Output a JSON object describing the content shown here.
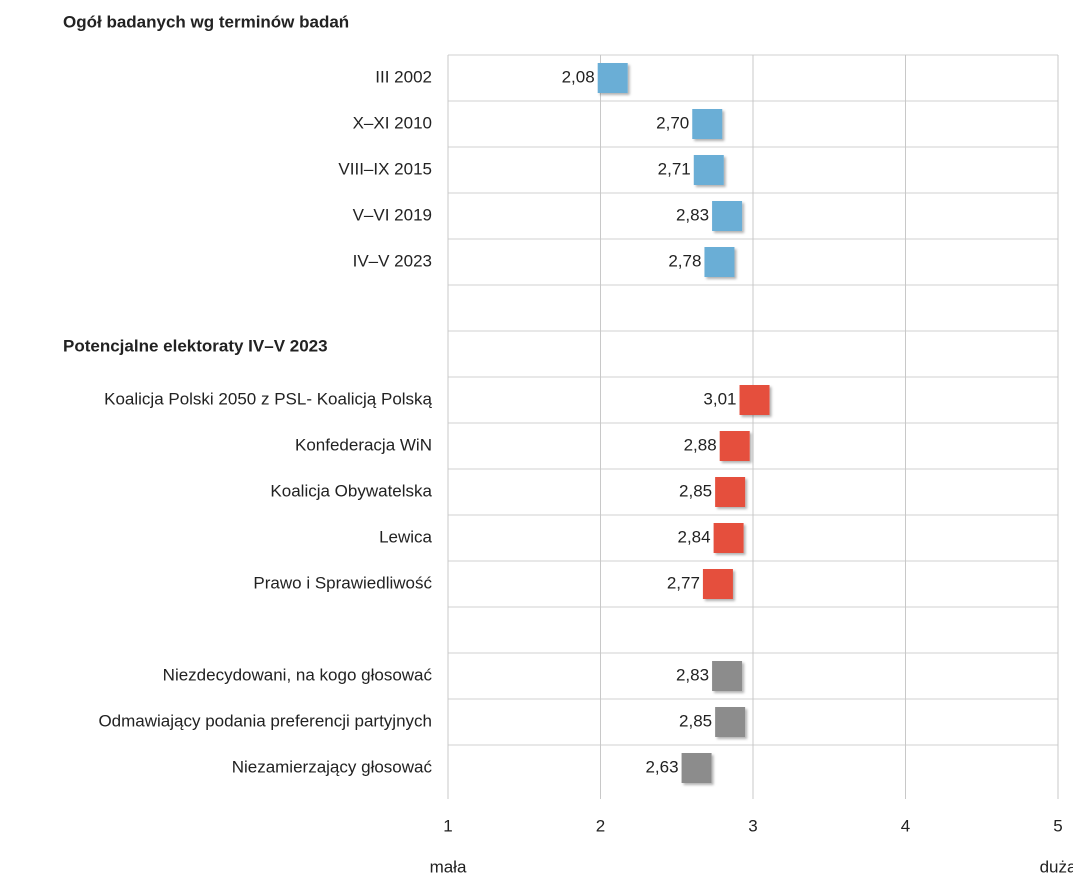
{
  "chart_data": {
    "type": "dot",
    "title": "Ogół badanych wg terminów badań",
    "categories": [
      "III 2002",
      "X–XI 2010",
      "VIII–IX 2015",
      "V–VI 2019",
      "IV–V 2023",
      null,
      "Potencjalne elektoraty IV–V 2023",
      "Koalicja Polski 2050 z PSL- Koalicją Polską",
      "Konfederacja WiN",
      "Koalicja Obywatelska",
      "Lewica",
      "Prawo i Sprawiedliwość",
      null,
      "Niezdecydowani, na kogo głosować",
      "Odmawiający podania preferencji partyjnych",
      "Niezamierzający głosować"
    ],
    "values": [
      2.08,
      2.7,
      2.71,
      2.83,
      2.78,
      null,
      null,
      3.01,
      2.88,
      2.85,
      2.84,
      2.77,
      null,
      2.83,
      2.85,
      2.63
    ],
    "value_labels": [
      "2,08",
      "2,70",
      "2,71",
      "2,83",
      "2,78",
      null,
      null,
      "3,01",
      "2,88",
      "2,85",
      "2,84",
      "2,77",
      null,
      "2,83",
      "2,85",
      "2,63"
    ],
    "colors": [
      "#6aaed6",
      "#6aaed6",
      "#6aaed6",
      "#6aaed6",
      "#6aaed6",
      null,
      null,
      "#e5503e",
      "#e5503e",
      "#e5503e",
      "#e5503e",
      "#e5503e",
      null,
      "#8c8c8c",
      "#8c8c8c",
      "#8c8c8c"
    ],
    "xlim": [
      1,
      5
    ],
    "xticks": [
      1,
      2,
      3,
      4,
      5
    ],
    "grid": true,
    "x_end_labels": [
      "mała",
      "duża"
    ]
  }
}
